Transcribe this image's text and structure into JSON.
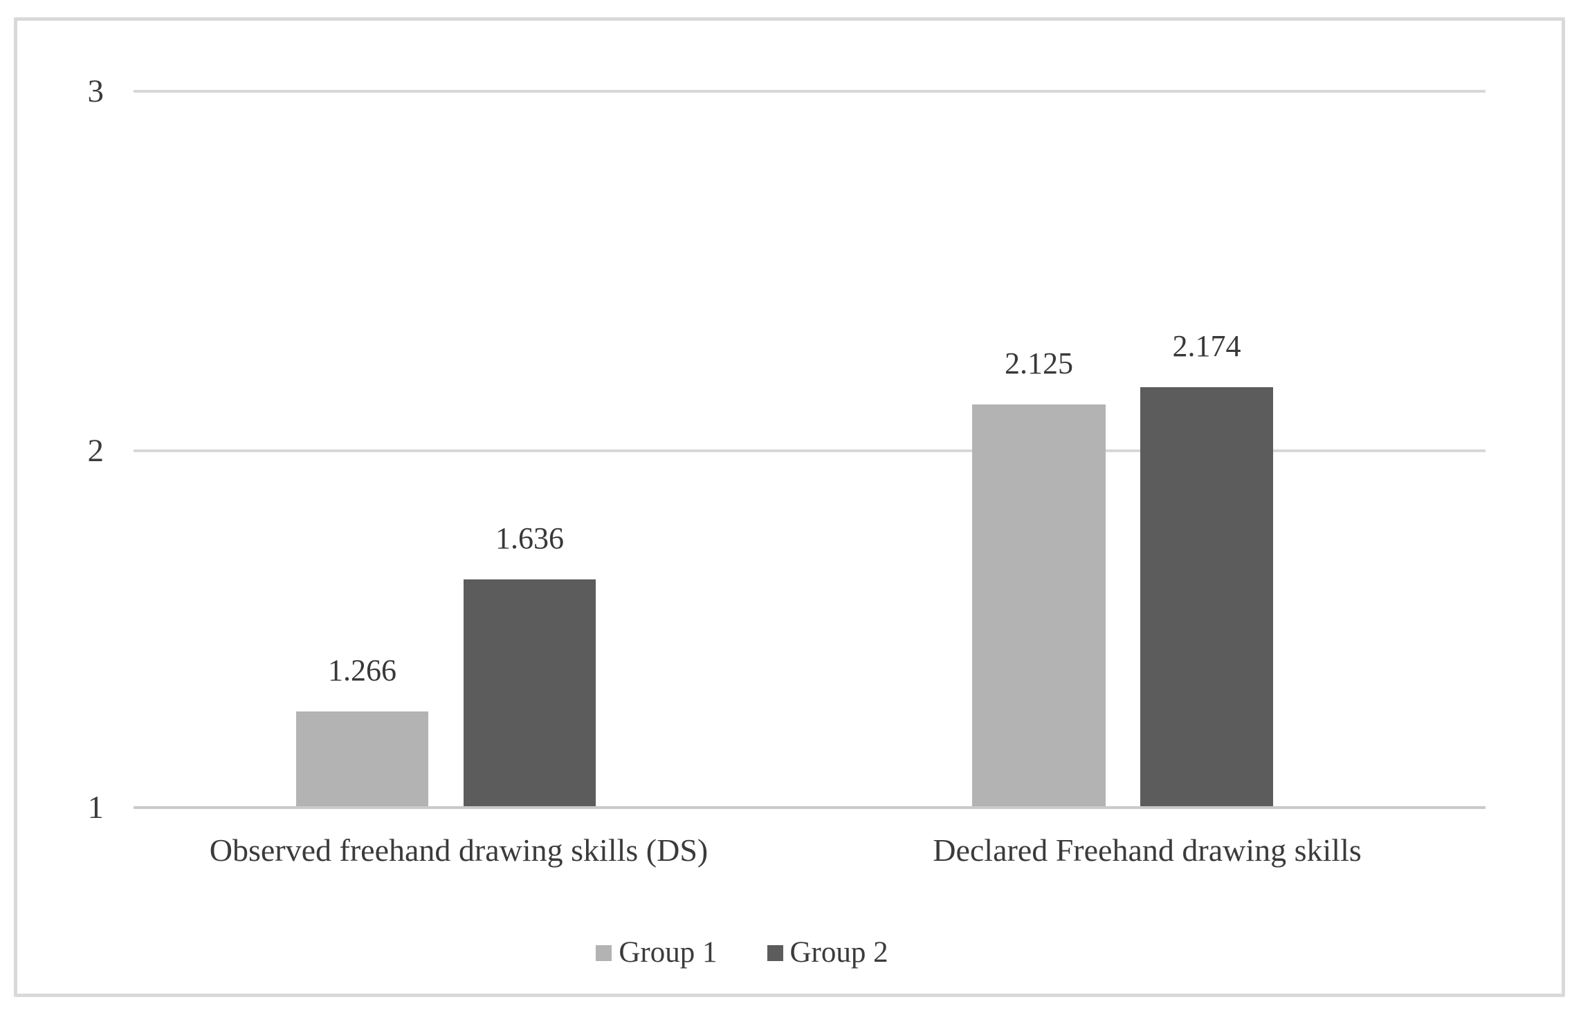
{
  "chart_data": {
    "type": "bar",
    "title": "",
    "categories": [
      "Observed freehand drawing skills (DS)",
      "Declared Freehand drawing skills"
    ],
    "series": [
      {
        "name": "Group 1",
        "color": "#b3b3b3",
        "values": [
          1.266,
          2.125
        ],
        "data_labels": [
          "1.266",
          "2.125"
        ]
      },
      {
        "name": "Group 2",
        "color": "#5c5c5c",
        "values": [
          1.636,
          2.174
        ],
        "data_labels": [
          "1.636",
          "2.174"
        ]
      }
    ],
    "y_axis": {
      "min": 1,
      "max": 3,
      "ticks": [
        "1",
        "2",
        "3"
      ]
    },
    "grid": true,
    "legend_position": "bottom",
    "colors": {
      "gridline": "#d7d7d7",
      "axis_line": "#c9c9c9",
      "frame_border": "#d9d9d9",
      "text": "#3b3b3b",
      "background": "#ffffff"
    }
  }
}
